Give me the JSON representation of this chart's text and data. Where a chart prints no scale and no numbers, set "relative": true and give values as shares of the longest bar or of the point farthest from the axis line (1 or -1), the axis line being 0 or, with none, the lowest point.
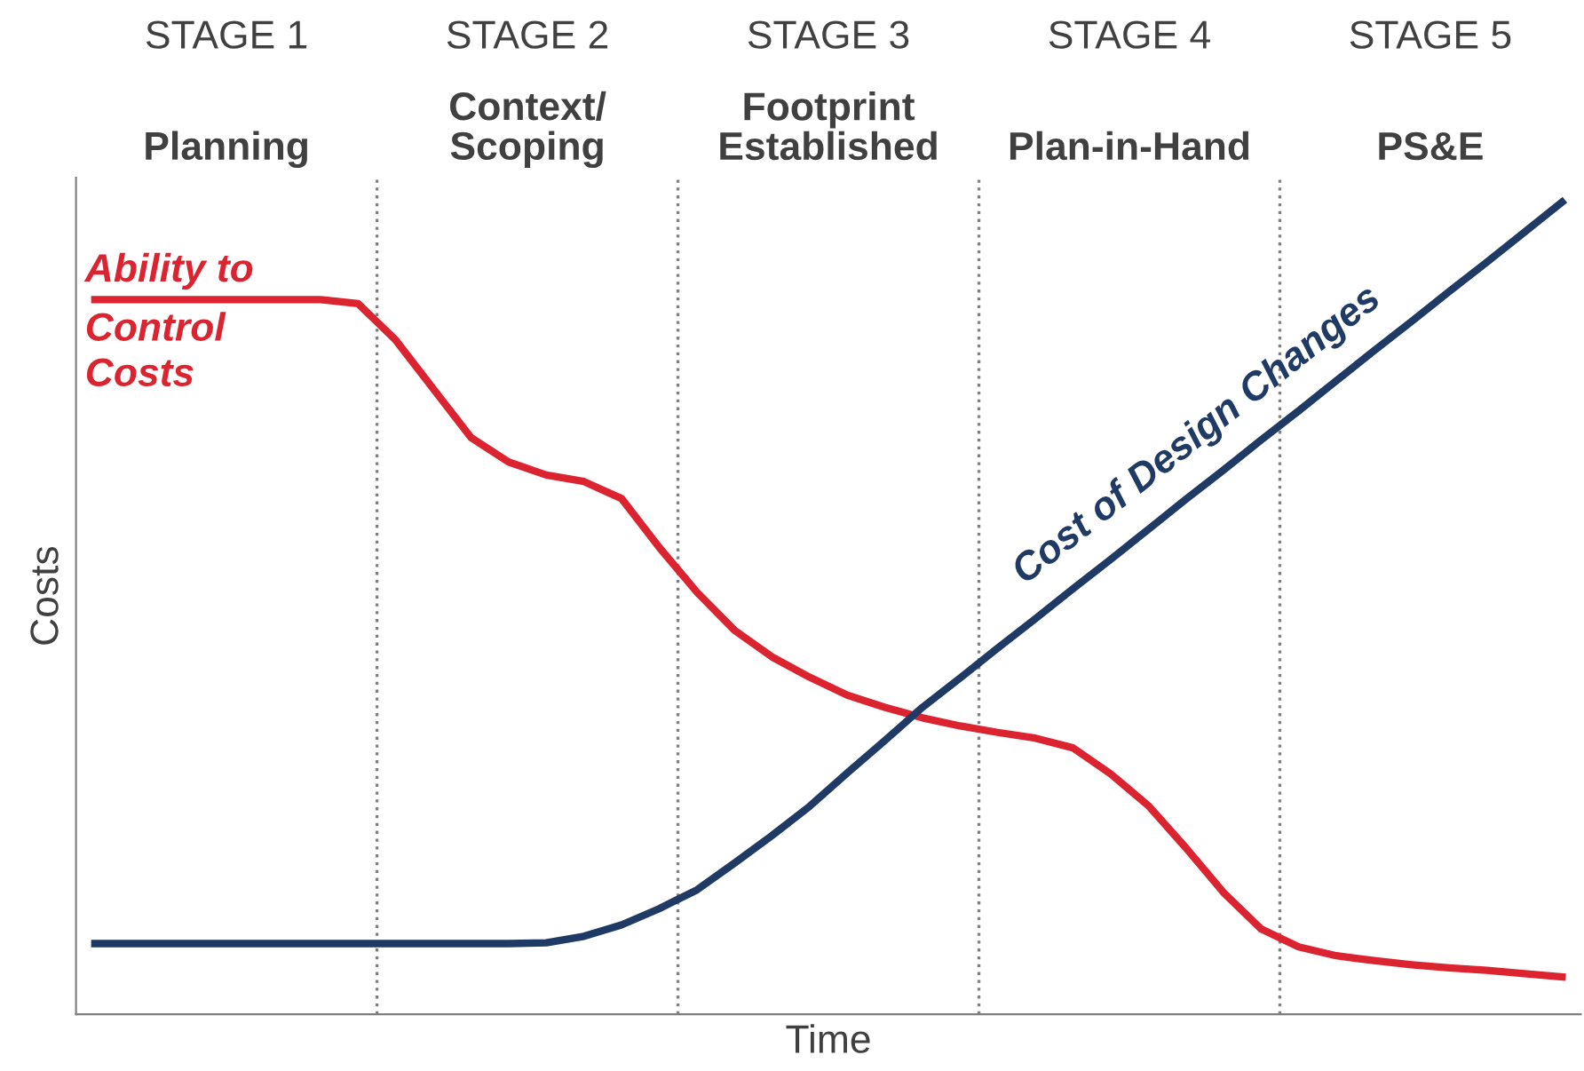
{
  "chart_data": {
    "type": "line",
    "relative": true,
    "xlabel": "Time",
    "ylabel": "Costs",
    "categories": [
      null,
      null,
      null,
      null,
      null,
      null,
      null,
      null,
      null,
      null,
      null,
      null,
      null,
      null,
      null,
      null,
      null,
      null,
      null,
      null,
      null,
      null,
      null,
      null,
      null,
      null,
      null,
      null,
      null,
      null,
      null,
      null,
      null,
      null,
      null,
      null,
      null,
      null,
      null,
      null
    ],
    "tick_labels": false,
    "grid": false,
    "legend": false,
    "marker": "none",
    "line_style": "solid",
    "annotations": [
      "STAGE 1",
      "Planning",
      "STAGE 2",
      "Context/\nScoping",
      "STAGE 3",
      "Footprint\nEstablished",
      "STAGE 4",
      "Plan-in-Hand",
      "STAGE 5",
      "PS&E"
    ],
    "series": [
      {
        "name": "Ability to\nControl\nCosts",
        "color": "#dc2330",
        "values": [
          0.88,
          0.88,
          0.88,
          0.88,
          0.88,
          0.88,
          0.88,
          0.875,
          0.83,
          0.77,
          0.71,
          0.68,
          0.664,
          0.656,
          0.635,
          0.575,
          0.52,
          0.473,
          0.44,
          0.415,
          0.393,
          0.378,
          0.365,
          0.355,
          0.347,
          0.34,
          0.328,
          0.296,
          0.257,
          0.205,
          0.15,
          0.105,
          0.083,
          0.072,
          0.066,
          0.061,
          0.057,
          0.054,
          0.05,
          0.046
        ]
      },
      {
        "name": "Cost of Design Changes",
        "color": "#1f3a64",
        "values": [
          0.087,
          0.087,
          0.087,
          0.087,
          0.087,
          0.087,
          0.087,
          0.087,
          0.087,
          0.087,
          0.087,
          0.087,
          0.088,
          0.096,
          0.11,
          0.13,
          0.153,
          0.186,
          0.22,
          0.256,
          0.297,
          0.337,
          0.378,
          0.414,
          0.451,
          0.487,
          0.524,
          0.56,
          0.597,
          0.634,
          0.67,
          0.707,
          0.743,
          0.78,
          0.817,
          0.853,
          0.89,
          0.926,
          0.963,
          1.0
        ]
      }
    ]
  }
}
